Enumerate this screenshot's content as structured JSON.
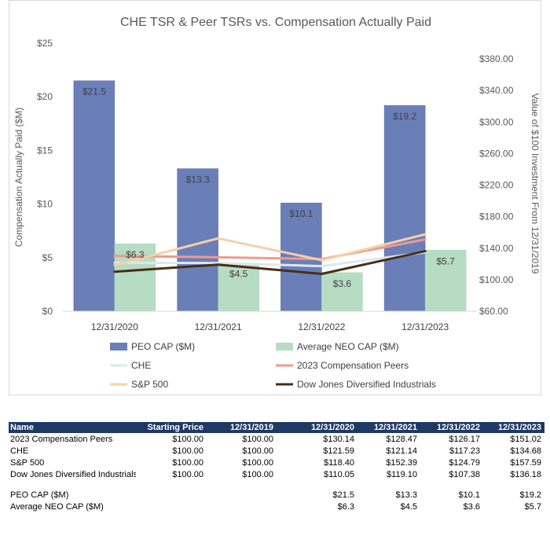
{
  "chart_data": {
    "type": "bar",
    "title": "CHE TSR & Peer TSRs vs. Compensation Actually Paid",
    "categories": [
      "12/31/2020",
      "12/31/2021",
      "12/31/2022",
      "12/31/2023"
    ],
    "ylabel": "Compensation Actually Paid ($M)",
    "y2label": "Value of $100 Investment From 12/31/2019",
    "ylim": [
      0,
      25
    ],
    "y2lim": [
      60,
      400
    ],
    "yticks": [
      "$0",
      "$5",
      "$10",
      "$15",
      "$20",
      "$25"
    ],
    "y2ticks": [
      "$60.00",
      "$100.00",
      "$140.00",
      "$180.00",
      "$220.00",
      "$260.00",
      "$300.00",
      "$340.00",
      "$380.00"
    ],
    "bar_series": [
      {
        "name": "PEO CAP ($M)",
        "values": [
          21.5,
          13.3,
          10.1,
          19.2
        ],
        "labels": [
          "$21.5",
          "$13.3",
          "$10.1",
          "$19.2"
        ],
        "color": "#6a7fb8"
      },
      {
        "name": "Average NEO CAP ($M)",
        "values": [
          6.3,
          4.5,
          3.6,
          5.7
        ],
        "labels": [
          "$6.3",
          "$4.5",
          "$3.6",
          "$5.7"
        ],
        "color": "#b7dcc4"
      }
    ],
    "line_series": [
      {
        "name": "CHE",
        "values": [
          121.59,
          121.14,
          117.23,
          134.68
        ],
        "color": "#dbe9ec"
      },
      {
        "name": "2023 Compensation Peers",
        "values": [
          130.14,
          128.47,
          126.17,
          151.02
        ],
        "color": "#f09a8c"
      },
      {
        "name": "S&P 500",
        "values": [
          118.4,
          152.39,
          124.79,
          157.59
        ],
        "color": "#f5d0a8"
      },
      {
        "name": "Dow Jones Diversified Industrials",
        "values": [
          110.05,
          119.1,
          107.38,
          136.18
        ],
        "color": "#4a2e13"
      }
    ],
    "legend_position": "bottom"
  },
  "table": {
    "headers": [
      "Name",
      "Starting Price",
      "12/31/2019",
      "12/31/2020",
      "12/31/2021",
      "12/31/2022",
      "12/31/2023"
    ],
    "rows": [
      [
        "2023 Compensation Peers",
        "$100.00",
        "$100.00",
        "$130.14",
        "$128.47",
        "$126.17",
        "$151.02"
      ],
      [
        "CHE",
        "$100.00",
        "$100.00",
        "$121.59",
        "$121.14",
        "$117.23",
        "$134.68"
      ],
      [
        "S&P 500",
        "$100.00",
        "$100.00",
        "$118.40",
        "$152.39",
        "$124.79",
        "$157.59"
      ],
      [
        "Dow Jones Diversified Industrials",
        "$100.00",
        "$100.00",
        "$110.05",
        "$119.10",
        "$107.38",
        "$136.18"
      ]
    ],
    "cap_rows": [
      [
        "PEO CAP ($M)",
        "",
        "",
        "$21.5",
        "$13.3",
        "$10.1",
        "$19.2"
      ],
      [
        "Average NEO CAP ($M)",
        "",
        "",
        "$6.3",
        "$4.5",
        "$3.6",
        "$5.7"
      ]
    ]
  }
}
